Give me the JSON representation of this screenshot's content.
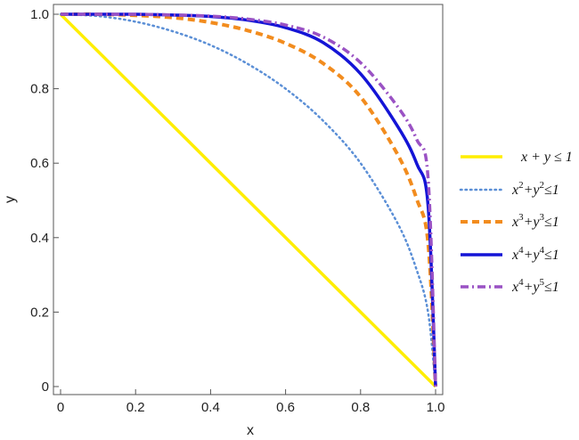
{
  "chart_data": {
    "type": "line",
    "title": "",
    "xlabel": "x",
    "ylabel": "y",
    "xlim": [
      0,
      1
    ],
    "ylim": [
      0,
      1
    ],
    "xticks": [
      0,
      0.2,
      0.4,
      0.6,
      0.8,
      1.0
    ],
    "xtick_labels": [
      "0",
      "0.2",
      "0.4",
      "0.6",
      "0.8",
      "1.0"
    ],
    "yticks": [
      0,
      0.2,
      0.4,
      0.6,
      0.8,
      1.0
    ],
    "ytick_labels": [
      "0",
      "0.2",
      "0.4",
      "0.6",
      "0.8",
      "1.0"
    ],
    "grid": false,
    "legend_position": "right",
    "series": [
      {
        "key": "s1",
        "name_parts": [
          [
            "x + y ≤ 1",
            ""
          ]
        ],
        "color": "#ffee00",
        "dash": "solid",
        "x": [
          0,
          0.1,
          0.2,
          0.3,
          0.4,
          0.5,
          0.6,
          0.7,
          0.8,
          0.9,
          1.0
        ],
        "y": [
          1,
          0.9,
          0.8,
          0.7,
          0.6,
          0.5,
          0.4,
          0.3,
          0.2,
          0.1,
          0
        ]
      },
      {
        "key": "s2",
        "name_parts": [
          [
            "x",
            ""
          ],
          [
            "2",
            "sup"
          ],
          [
            "+",
            ""
          ],
          [
            "y",
            ""
          ],
          [
            "2",
            "sup"
          ],
          [
            "≤1",
            ""
          ]
        ],
        "color": "#5b8fd6",
        "dash": "dotted",
        "x": [
          0,
          0.1,
          0.2,
          0.3,
          0.4,
          0.5,
          0.6,
          0.7,
          0.8,
          0.9,
          0.95,
          0.98,
          1.0
        ],
        "y": [
          1,
          0.995,
          0.98,
          0.954,
          0.917,
          0.866,
          0.8,
          0.714,
          0.6,
          0.436,
          0.312,
          0.199,
          0
        ]
      },
      {
        "key": "s3",
        "name_parts": [
          [
            "x",
            ""
          ],
          [
            "3",
            "sup"
          ],
          [
            "+",
            ""
          ],
          [
            "y",
            ""
          ],
          [
            "3",
            "sup"
          ],
          [
            "≤1",
            ""
          ]
        ],
        "color": "#f28c1e",
        "dash": "dashed",
        "x": [
          0,
          0.1,
          0.2,
          0.3,
          0.4,
          0.5,
          0.6,
          0.7,
          0.8,
          0.9,
          0.95,
          0.98,
          1.0
        ],
        "y": [
          1,
          1.0,
          0.997,
          0.991,
          0.978,
          0.956,
          0.922,
          0.868,
          0.778,
          0.621,
          0.503,
          0.386,
          0
        ]
      },
      {
        "key": "s4",
        "name_parts": [
          [
            "x",
            ""
          ],
          [
            "4",
            "sup"
          ],
          [
            "+",
            ""
          ],
          [
            "y",
            ""
          ],
          [
            "4",
            "sup"
          ],
          [
            "≤1",
            ""
          ]
        ],
        "color": "#1414d6",
        "dash": "solid",
        "x": [
          0,
          0.1,
          0.2,
          0.3,
          0.4,
          0.5,
          0.6,
          0.7,
          0.8,
          0.9,
          0.95,
          0.98,
          1.0
        ],
        "y": [
          1,
          1.0,
          1.0,
          0.998,
          0.994,
          0.984,
          0.964,
          0.924,
          0.84,
          0.697,
          0.598,
          0.486,
          0
        ]
      },
      {
        "key": "s5",
        "name_parts": [
          [
            "x",
            ""
          ],
          [
            "4",
            "sup"
          ],
          [
            "+",
            ""
          ],
          [
            "y",
            ""
          ],
          [
            "5",
            "sup"
          ],
          [
            "≤1",
            ""
          ]
        ],
        "color": "#9a52c4",
        "dash": "dashdot",
        "x": [
          0,
          0.1,
          0.2,
          0.3,
          0.4,
          0.5,
          0.6,
          0.7,
          0.8,
          0.9,
          0.95,
          0.98,
          1.0
        ],
        "y": [
          1,
          1.0,
          1.0,
          0.998,
          0.995,
          0.987,
          0.971,
          0.939,
          0.87,
          0.75,
          0.663,
          0.56,
          0
        ]
      }
    ]
  }
}
